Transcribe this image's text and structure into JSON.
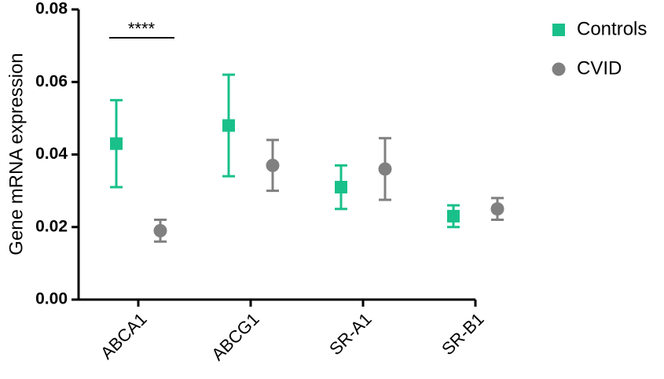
{
  "chart_data": {
    "type": "errorbar",
    "y_label": "Gene mRNA expression",
    "categories": [
      "ABCA1",
      "ABCG1",
      "SR-A1",
      "SR-B1"
    ],
    "series": [
      {
        "name": "Controls",
        "color": "#19c08a",
        "marker": "square",
        "values": [
          0.043,
          0.048,
          0.031,
          0.023
        ],
        "errors": [
          0.012,
          0.014,
          0.006,
          0.003
        ]
      },
      {
        "name": "CVID",
        "color": "#808080",
        "marker": "circle",
        "values": [
          0.019,
          0.037,
          0.036,
          0.025
        ],
        "errors": [
          0.003,
          0.007,
          0.0085,
          0.003
        ]
      }
    ],
    "annotations": [
      {
        "text": "****"
      }
    ],
    "ylim": [
      0,
      0.08
    ],
    "yticks": [
      {
        "value": 0,
        "label": "0.00"
      },
      0.02,
      0.04,
      0.06,
      0.08
    ],
    "grid": false
  }
}
